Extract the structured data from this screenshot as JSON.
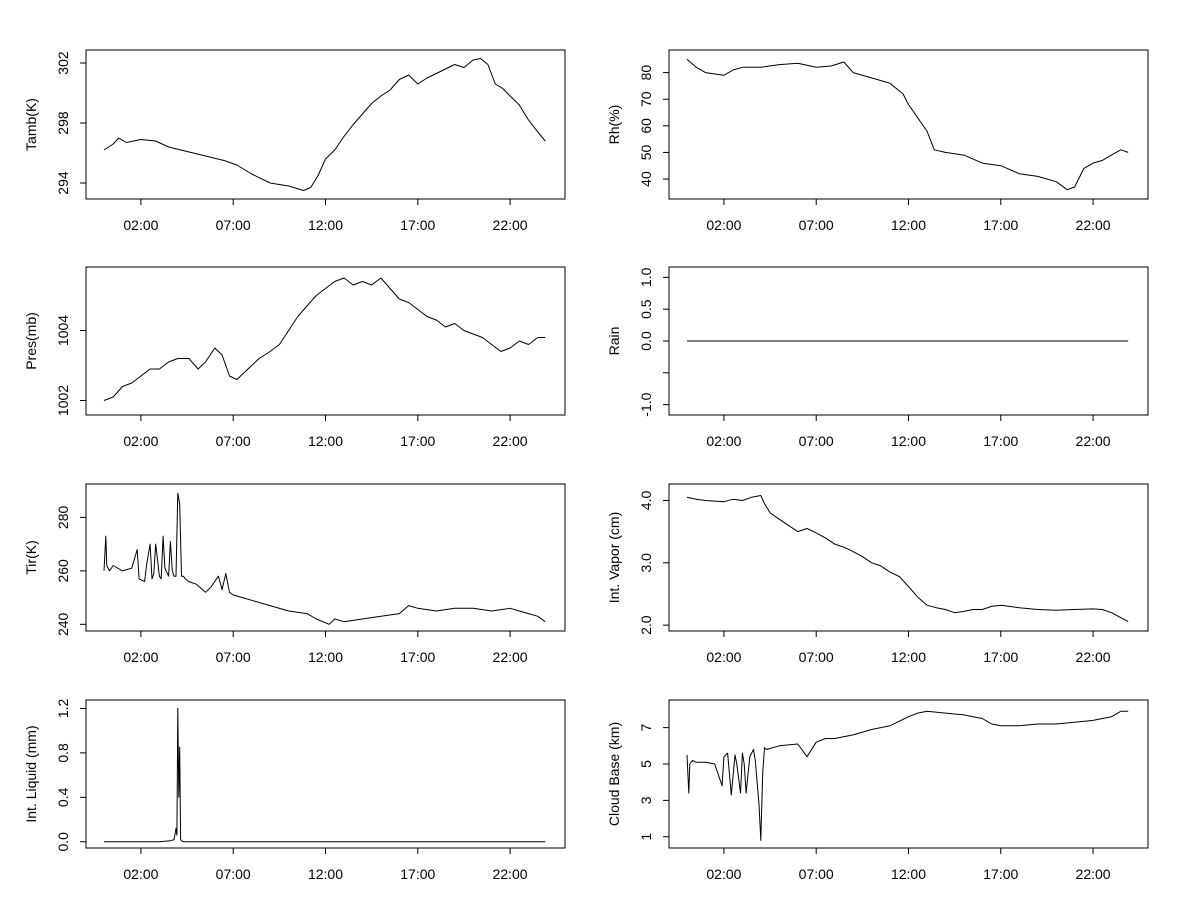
{
  "chart_data": [
    {
      "type": "line",
      "ylabel": "Tamb(K)",
      "xlabel": "",
      "xlim": [
        0,
        24
      ],
      "ylim": [
        293.2,
        302.6
      ],
      "xticks": [
        2,
        7,
        12,
        17,
        22
      ],
      "xtick_labels": [
        "02:00",
        "07:00",
        "12:00",
        "17:00",
        "22:00"
      ],
      "yticks": [
        294,
        298,
        302
      ],
      "ytick_labels": [
        "294",
        "298",
        "302"
      ],
      "series": [
        {
          "name": "Tamb",
          "x": [
            0,
            0.5,
            0.8,
            1.2,
            2,
            2.8,
            3.5,
            4.5,
            5.5,
            6.5,
            7.2,
            8,
            9,
            10,
            10.8,
            11.2,
            11.6,
            12,
            12.5,
            13,
            13.5,
            14,
            14.5,
            15,
            15.5,
            16,
            16.5,
            17,
            17.5,
            18,
            18.5,
            19,
            19.5,
            20,
            20.4,
            20.8,
            21.2,
            21.6,
            22,
            22.5,
            23,
            23.5,
            23.9
          ],
          "values": [
            296.2,
            296.6,
            297.0,
            296.7,
            296.9,
            296.8,
            296.4,
            296.1,
            295.8,
            295.5,
            295.2,
            294.6,
            294.0,
            293.8,
            293.5,
            293.7,
            294.5,
            295.6,
            296.2,
            297.1,
            297.9,
            298.6,
            299.3,
            299.8,
            300.2,
            300.9,
            301.2,
            300.6,
            301.0,
            301.3,
            301.6,
            301.9,
            301.7,
            302.2,
            302.3,
            301.9,
            300.6,
            300.3,
            299.8,
            299.2,
            298.2,
            297.4,
            296.8
          ]
        }
      ]
    },
    {
      "type": "line",
      "ylabel": "Rh(%)",
      "xlabel": "",
      "xlim": [
        0,
        24
      ],
      "ylim": [
        34,
        87
      ],
      "xticks": [
        2,
        7,
        12,
        17,
        22
      ],
      "xtick_labels": [
        "02:00",
        "07:00",
        "12:00",
        "17:00",
        "22:00"
      ],
      "yticks": [
        40,
        50,
        60,
        70,
        80
      ],
      "ytick_labels": [
        "40",
        "50",
        "60",
        "70",
        "80"
      ],
      "series": [
        {
          "name": "Rh",
          "x": [
            0,
            0.5,
            1,
            2,
            2.5,
            3,
            4,
            5,
            6,
            7,
            7.8,
            8.5,
            9,
            10,
            11,
            11.7,
            12,
            12.5,
            13,
            13.4,
            14,
            15,
            16,
            17,
            18,
            19,
            20,
            20.6,
            21,
            21.5,
            22,
            22.5,
            23,
            23.5,
            23.9
          ],
          "values": [
            85,
            82,
            80,
            79,
            81,
            82,
            82,
            83,
            83.5,
            82,
            82.5,
            84,
            80,
            78,
            76,
            72,
            68,
            63,
            58,
            51,
            50,
            49,
            46,
            45,
            42,
            41,
            39,
            36,
            37,
            44,
            46,
            47,
            49,
            51,
            50
          ]
        }
      ]
    },
    {
      "type": "line",
      "ylabel": "Pres(mb)",
      "xlabel": "",
      "xlim": [
        0,
        24
      ],
      "ylim": [
        1001.7,
        1005.7
      ],
      "xticks": [
        2,
        7,
        12,
        17,
        22
      ],
      "xtick_labels": [
        "02:00",
        "07:00",
        "12:00",
        "17:00",
        "22:00"
      ],
      "yticks": [
        1002,
        1004
      ],
      "ytick_labels": [
        "1002",
        "1004"
      ],
      "series": [
        {
          "name": "Pres",
          "x": [
            0,
            0.5,
            1,
            1.5,
            2,
            2.5,
            3,
            3.5,
            4,
            4.6,
            5.1,
            5.5,
            6,
            6.4,
            6.8,
            7.2,
            7.8,
            8.4,
            9,
            9.5,
            10,
            10.5,
            11,
            11.5,
            12,
            12.5,
            13,
            13.5,
            14,
            14.5,
            15,
            15.5,
            16,
            16.5,
            17,
            17.5,
            18,
            18.5,
            19,
            19.5,
            20,
            20.5,
            21,
            21.5,
            22,
            22.5,
            23,
            23.5,
            23.9
          ],
          "values": [
            1002.0,
            1002.1,
            1002.4,
            1002.5,
            1002.7,
            1002.9,
            1002.9,
            1003.1,
            1003.2,
            1003.2,
            1002.9,
            1003.1,
            1003.5,
            1003.3,
            1002.7,
            1002.6,
            1002.9,
            1003.2,
            1003.4,
            1003.6,
            1004.0,
            1004.4,
            1004.7,
            1005.0,
            1005.2,
            1005.4,
            1005.5,
            1005.3,
            1005.4,
            1005.3,
            1005.5,
            1005.2,
            1004.9,
            1004.8,
            1004.6,
            1004.4,
            1004.3,
            1004.1,
            1004.2,
            1004.0,
            1003.9,
            1003.8,
            1003.6,
            1003.4,
            1003.5,
            1003.7,
            1003.6,
            1003.8,
            1003.8
          ]
        }
      ]
    },
    {
      "type": "line",
      "ylabel": "Rain",
      "xlabel": "",
      "xlim": [
        0,
        24
      ],
      "ylim": [
        -1.1,
        1.1
      ],
      "xticks": [
        2,
        7,
        12,
        17,
        22
      ],
      "xtick_labels": [
        "02:00",
        "07:00",
        "12:00",
        "17:00",
        "22:00"
      ],
      "yticks": [
        -1.0,
        -0.5,
        0.0,
        0.5,
        1.0
      ],
      "ytick_labels": [
        "-1.0",
        "",
        "0.0",
        "0.5",
        "1.0"
      ],
      "series": [
        {
          "name": "Rain",
          "x": [
            0,
            23.9
          ],
          "values": [
            0,
            0
          ]
        }
      ]
    },
    {
      "type": "line",
      "ylabel": "Tir(K)",
      "xlabel": "",
      "xlim": [
        0,
        24
      ],
      "ylim": [
        239,
        291
      ],
      "xticks": [
        2,
        7,
        12,
        17,
        22
      ],
      "xtick_labels": [
        "02:00",
        "07:00",
        "12:00",
        "17:00",
        "22:00"
      ],
      "yticks": [
        240,
        260,
        280
      ],
      "ytick_labels": [
        "240",
        "260",
        "280"
      ],
      "series": [
        {
          "name": "Tir",
          "x": [
            0,
            0.1,
            0.15,
            0.3,
            0.5,
            1,
            1.5,
            1.8,
            1.9,
            2.2,
            2.3,
            2.5,
            2.6,
            2.7,
            2.8,
            3.0,
            3.1,
            3.2,
            3.3,
            3.5,
            3.6,
            3.7,
            3.8,
            3.9,
            4.0,
            4.1,
            4.2,
            4.3,
            4.4,
            4.6,
            5.0,
            5.5,
            5.8,
            6.2,
            6.4,
            6.6,
            6.8,
            7.0,
            7.5,
            8,
            9,
            10,
            11,
            11.5,
            12.2,
            12.5,
            13,
            14,
            15,
            16,
            16.5,
            17,
            18,
            19,
            20,
            21,
            22,
            22.5,
            23,
            23.5,
            23.9
          ],
          "values": [
            260,
            273,
            262,
            260,
            262,
            260,
            261,
            268,
            257,
            256,
            262,
            270,
            257,
            259,
            270,
            258,
            257,
            273,
            261,
            258,
            271,
            260,
            258,
            258,
            289,
            285,
            258,
            258,
            257,
            256,
            255,
            252,
            254,
            258,
            253,
            259,
            252,
            251,
            250,
            249,
            247,
            245,
            244,
            242,
            240,
            242,
            241,
            242,
            243,
            244,
            247,
            246,
            245,
            246,
            246,
            245,
            246,
            245,
            244,
            243,
            241
          ]
        }
      ]
    },
    {
      "type": "line",
      "ylabel": "Int. Vapor (cm)",
      "xlabel": "",
      "xlim": [
        0,
        24
      ],
      "ylim": [
        1.97,
        4.2
      ],
      "xticks": [
        2,
        7,
        12,
        17,
        22
      ],
      "xtick_labels": [
        "02:00",
        "07:00",
        "12:00",
        "17:00",
        "22:00"
      ],
      "yticks": [
        2.0,
        3.0,
        4.0
      ],
      "ytick_labels": [
        "2.0",
        "3.0",
        "4.0"
      ],
      "series": [
        {
          "name": "Int. Vapor",
          "x": [
            0,
            0.5,
            1,
            2,
            2.5,
            3,
            3.5,
            4,
            4.2,
            4.5,
            5,
            5.5,
            6,
            6.5,
            7,
            7.5,
            8,
            8.5,
            9,
            9.5,
            10,
            10.5,
            11,
            11.5,
            12,
            12.5,
            13,
            13.5,
            14,
            14.5,
            15,
            15.5,
            16,
            16.5,
            17,
            18,
            19,
            20,
            21,
            22,
            22.5,
            23,
            23.5,
            23.9
          ],
          "values": [
            4.05,
            4.02,
            4.0,
            3.98,
            4.02,
            4.0,
            4.05,
            4.08,
            3.95,
            3.8,
            3.7,
            3.6,
            3.5,
            3.55,
            3.48,
            3.4,
            3.3,
            3.25,
            3.18,
            3.1,
            3.0,
            2.95,
            2.85,
            2.78,
            2.62,
            2.45,
            2.32,
            2.28,
            2.25,
            2.2,
            2.22,
            2.25,
            2.25,
            2.3,
            2.32,
            2.28,
            2.25,
            2.24,
            2.25,
            2.26,
            2.25,
            2.2,
            2.12,
            2.06
          ]
        }
      ]
    },
    {
      "type": "line",
      "ylabel": "Int. Liquid (mm)",
      "xlabel": "",
      "xlim": [
        0,
        24
      ],
      "ylim": [
        -0.02,
        1.24
      ],
      "xticks": [
        2,
        7,
        12,
        17,
        22
      ],
      "xtick_labels": [
        "02:00",
        "07:00",
        "12:00",
        "17:00",
        "22:00"
      ],
      "yticks": [
        0.0,
        0.4,
        0.8,
        1.2
      ],
      "ytick_labels": [
        "0.0",
        "0.4",
        "0.8",
        "1.2"
      ],
      "series": [
        {
          "name": "Int. Liquid",
          "x": [
            0,
            3.0,
            3.6,
            3.8,
            3.9,
            3.95,
            4.0,
            4.05,
            4.1,
            4.15,
            4.2,
            4.3,
            4.5,
            23.9
          ],
          "values": [
            0,
            0,
            0.01,
            0.02,
            0.12,
            0.06,
            1.2,
            0.4,
            0.85,
            0.02,
            0.01,
            0,
            0,
            0
          ]
        }
      ]
    },
    {
      "type": "line",
      "ylabel": "Cloud Base (km)",
      "xlabel": "",
      "xlim": [
        0,
        24
      ],
      "ylim": [
        0.6,
        8.3
      ],
      "xticks": [
        2,
        7,
        12,
        17,
        22
      ],
      "xtick_labels": [
        "02:00",
        "07:00",
        "12:00",
        "17:00",
        "22:00"
      ],
      "yticks": [
        1,
        3,
        5,
        7
      ],
      "ytick_labels": [
        "1",
        "3",
        "5",
        "7"
      ],
      "series": [
        {
          "name": "Cloud Base",
          "x": [
            0,
            0.1,
            0.15,
            0.3,
            0.5,
            1,
            1.5,
            1.9,
            2.0,
            2.2,
            2.4,
            2.6,
            2.7,
            2.9,
            3.0,
            3.1,
            3.2,
            3.4,
            3.6,
            3.7,
            3.8,
            3.9,
            4.0,
            4.1,
            4.2,
            4.3,
            5,
            6,
            6.5,
            7,
            7.5,
            8,
            9,
            10,
            11,
            12,
            12.5,
            13,
            14,
            15,
            15.5,
            16,
            16.5,
            17,
            18,
            19,
            20,
            21,
            22,
            22.5,
            23,
            23.5,
            23.9
          ],
          "values": [
            5.5,
            3.4,
            5.0,
            5.2,
            5.1,
            5.1,
            5.0,
            3.8,
            5.4,
            5.6,
            3.3,
            5.5,
            5.0,
            3.4,
            5.6,
            5.0,
            3.4,
            5.4,
            5.8,
            5.2,
            4.0,
            2.8,
            0.8,
            4.5,
            5.9,
            5.8,
            6.0,
            6.1,
            5.4,
            6.2,
            6.4,
            6.4,
            6.6,
            6.9,
            7.1,
            7.6,
            7.8,
            7.9,
            7.8,
            7.7,
            7.6,
            7.5,
            7.2,
            7.1,
            7.1,
            7.2,
            7.2,
            7.3,
            7.4,
            7.5,
            7.6,
            7.9,
            7.9
          ]
        }
      ]
    }
  ]
}
